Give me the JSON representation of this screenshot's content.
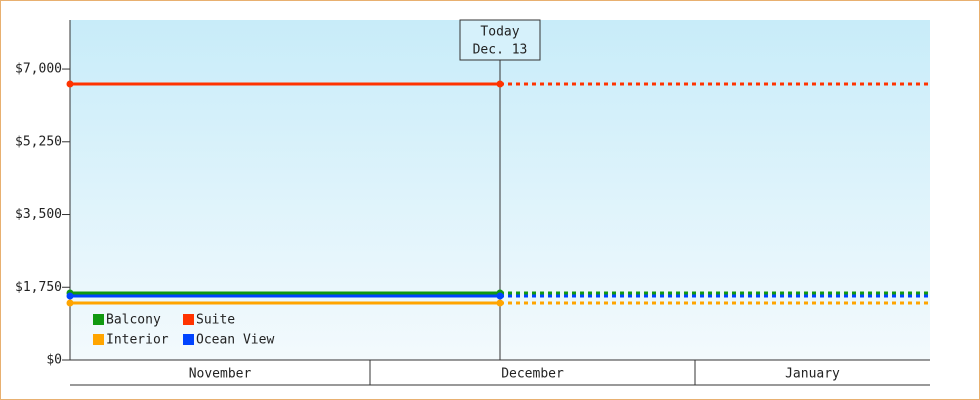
{
  "chart_data": {
    "type": "line",
    "categories": [
      null,
      "Dec. 13"
    ],
    "annotation": {
      "label": "Today",
      "date": "Dec. 13"
    },
    "months": [
      "November",
      "December",
      "January"
    ],
    "series": [
      {
        "name": "Balcony",
        "color": "#119911",
        "values": [
          1612,
          1612
        ]
      },
      {
        "name": "Suite",
        "color": "#ff3300",
        "values": [
          6640,
          6640
        ]
      },
      {
        "name": "Interior",
        "color": "#ffa500",
        "values": [
          1371,
          1371
        ]
      },
      {
        "name": "Ocean View",
        "color": "#0044ff",
        "values": [
          1540,
          1540
        ]
      }
    ],
    "ylim": [
      0,
      8180
    ],
    "yticks": [
      {
        "value": 0,
        "label": "$0"
      },
      {
        "value": 1750,
        "label": "$1,750"
      },
      {
        "value": 3500,
        "label": "$3,500"
      },
      {
        "value": 5250,
        "label": "$5,250"
      },
      {
        "value": 7000,
        "label": "$7,000"
      }
    ],
    "legend": "lower-left"
  }
}
